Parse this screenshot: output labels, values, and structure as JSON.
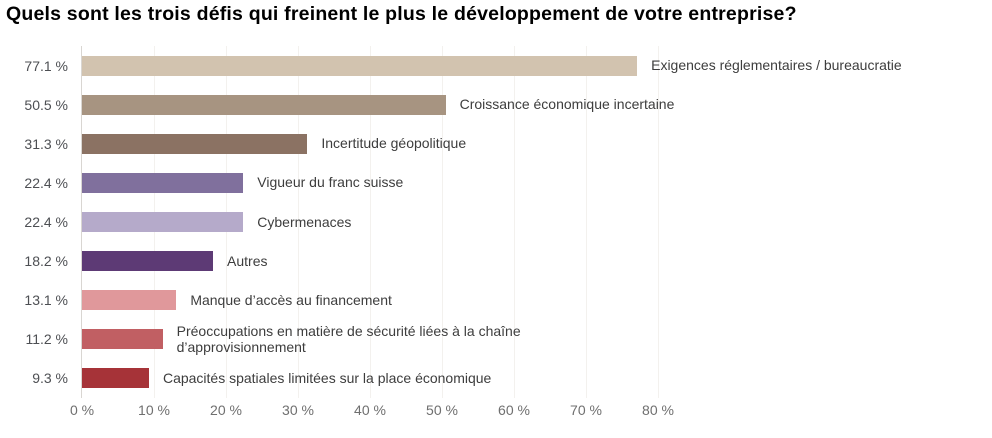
{
  "title": "Quels sont les trois défis qui freinent le plus le développement de votre entreprise?",
  "chart_data": {
    "type": "bar",
    "orientation": "horizontal",
    "title": "Quels sont les trois défis qui freinent le plus le développement de votre entreprise?",
    "xlabel": "",
    "ylabel": "",
    "xlim": [
      0,
      80
    ],
    "x_ticks": [
      "0 %",
      "10 %",
      "20 %",
      "30 %",
      "40 %",
      "50 %",
      "60 %",
      "70 %",
      "80 %"
    ],
    "grid": true,
    "legend": "none",
    "items": [
      {
        "value": 77.1,
        "value_label": "77.1 %",
        "label": "Exigences réglementaires / bureaucratie",
        "color": "#d2c3af"
      },
      {
        "value": 50.5,
        "value_label": "50.5 %",
        "label": "Croissance économique incertaine",
        "color": "#a79481"
      },
      {
        "value": 31.3,
        "value_label": "31.3 %",
        "label": "Incertitude géopolitique",
        "color": "#8b7263"
      },
      {
        "value": 22.4,
        "value_label": "22.4 %",
        "label": "Vigueur du franc suisse",
        "color": "#80709d"
      },
      {
        "value": 22.4,
        "value_label": "22.4 %",
        "label": "Cybermenaces",
        "color": "#b5aaca"
      },
      {
        "value": 18.2,
        "value_label": "18.2 %",
        "label": "Autres",
        "color": "#5d3a75"
      },
      {
        "value": 13.1,
        "value_label": "13.1 %",
        "label": "Manque d’accès au financement",
        "color": "#e0989b"
      },
      {
        "value": 11.2,
        "value_label": "11.2 %",
        "label": "Préoccupations en matière de sécurité liées à la chaîne d’approvisionnement",
        "color": "#c15f63"
      },
      {
        "value": 9.3,
        "value_label": "9.3 %",
        "label": "Capacités spatiales limitées sur la place économique",
        "color": "#a63338"
      }
    ]
  },
  "colors": {
    "axis_line": "#d9d6d2",
    "gridline": "#f3f1ee",
    "value_text": "#4d4f53",
    "label_text": "#3d3d3d",
    "tick_text": "#6f6f6f",
    "title_text": "#000000",
    "background": "#ffffff"
  }
}
